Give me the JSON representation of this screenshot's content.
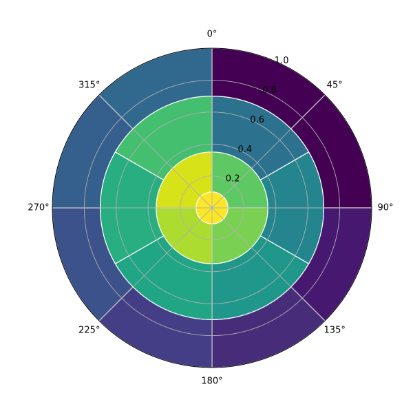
{
  "chart_data": {
    "type": "polar-sunburst",
    "theta_zero_location": "N",
    "theta_direction": "clockwise",
    "theta_ticks": [
      "0°",
      "45°",
      "90°",
      "135°",
      "180°",
      "225°",
      "270°",
      "315°"
    ],
    "theta_tick_values_deg": [
      0,
      45,
      90,
      135,
      180,
      225,
      270,
      315
    ],
    "r_ticks": [
      "0.2",
      "0.4",
      "0.6",
      "0.8",
      "1.0"
    ],
    "r_tick_values": [
      0.2,
      0.4,
      0.6,
      0.8,
      1.0
    ],
    "rlim": [
      0,
      1.0
    ],
    "grid": true,
    "colormap": "viridis",
    "rings": [
      {
        "r_inner": 0.0,
        "r_outer": 0.1,
        "sectors": [
          {
            "start_deg": 0,
            "end_deg": 360,
            "color": "#fde725"
          }
        ]
      },
      {
        "r_inner": 0.1,
        "r_outer": 0.35,
        "sectors": [
          {
            "start_deg": 0,
            "end_deg": 90,
            "color": "#5ec962"
          },
          {
            "start_deg": 90,
            "end_deg": 180,
            "color": "#7ad151"
          },
          {
            "start_deg": 180,
            "end_deg": 270,
            "color": "#addc30"
          },
          {
            "start_deg": 270,
            "end_deg": 360,
            "color": "#d8e219"
          }
        ]
      },
      {
        "r_inner": 0.35,
        "r_outer": 0.7,
        "sectors": [
          {
            "start_deg": 0,
            "end_deg": 60,
            "color": "#2c728e"
          },
          {
            "start_deg": 60,
            "end_deg": 120,
            "color": "#25858e"
          },
          {
            "start_deg": 120,
            "end_deg": 180,
            "color": "#1f978b"
          },
          {
            "start_deg": 180,
            "end_deg": 240,
            "color": "#21a685"
          },
          {
            "start_deg": 240,
            "end_deg": 300,
            "color": "#28ae80"
          },
          {
            "start_deg": 300,
            "end_deg": 360,
            "color": "#44bf70"
          }
        ]
      },
      {
        "r_inner": 0.7,
        "r_outer": 1.0,
        "sectors": [
          {
            "start_deg": 0,
            "end_deg": 45,
            "color": "#440154"
          },
          {
            "start_deg": 45,
            "end_deg": 90,
            "color": "#440154"
          },
          {
            "start_deg": 90,
            "end_deg": 135,
            "color": "#46186f"
          },
          {
            "start_deg": 135,
            "end_deg": 180,
            "color": "#472c7a"
          },
          {
            "start_deg": 180,
            "end_deg": 225,
            "color": "#433e85"
          },
          {
            "start_deg": 225,
            "end_deg": 270,
            "color": "#3b528b"
          },
          {
            "start_deg": 270,
            "end_deg": 315,
            "color": "#355f8d"
          },
          {
            "start_deg": 315,
            "end_deg": 360,
            "color": "#31688e"
          }
        ]
      }
    ],
    "sector_edge_color": "#ffffff",
    "grid_color": "#b0b0b0",
    "spine_color": "#000000"
  }
}
